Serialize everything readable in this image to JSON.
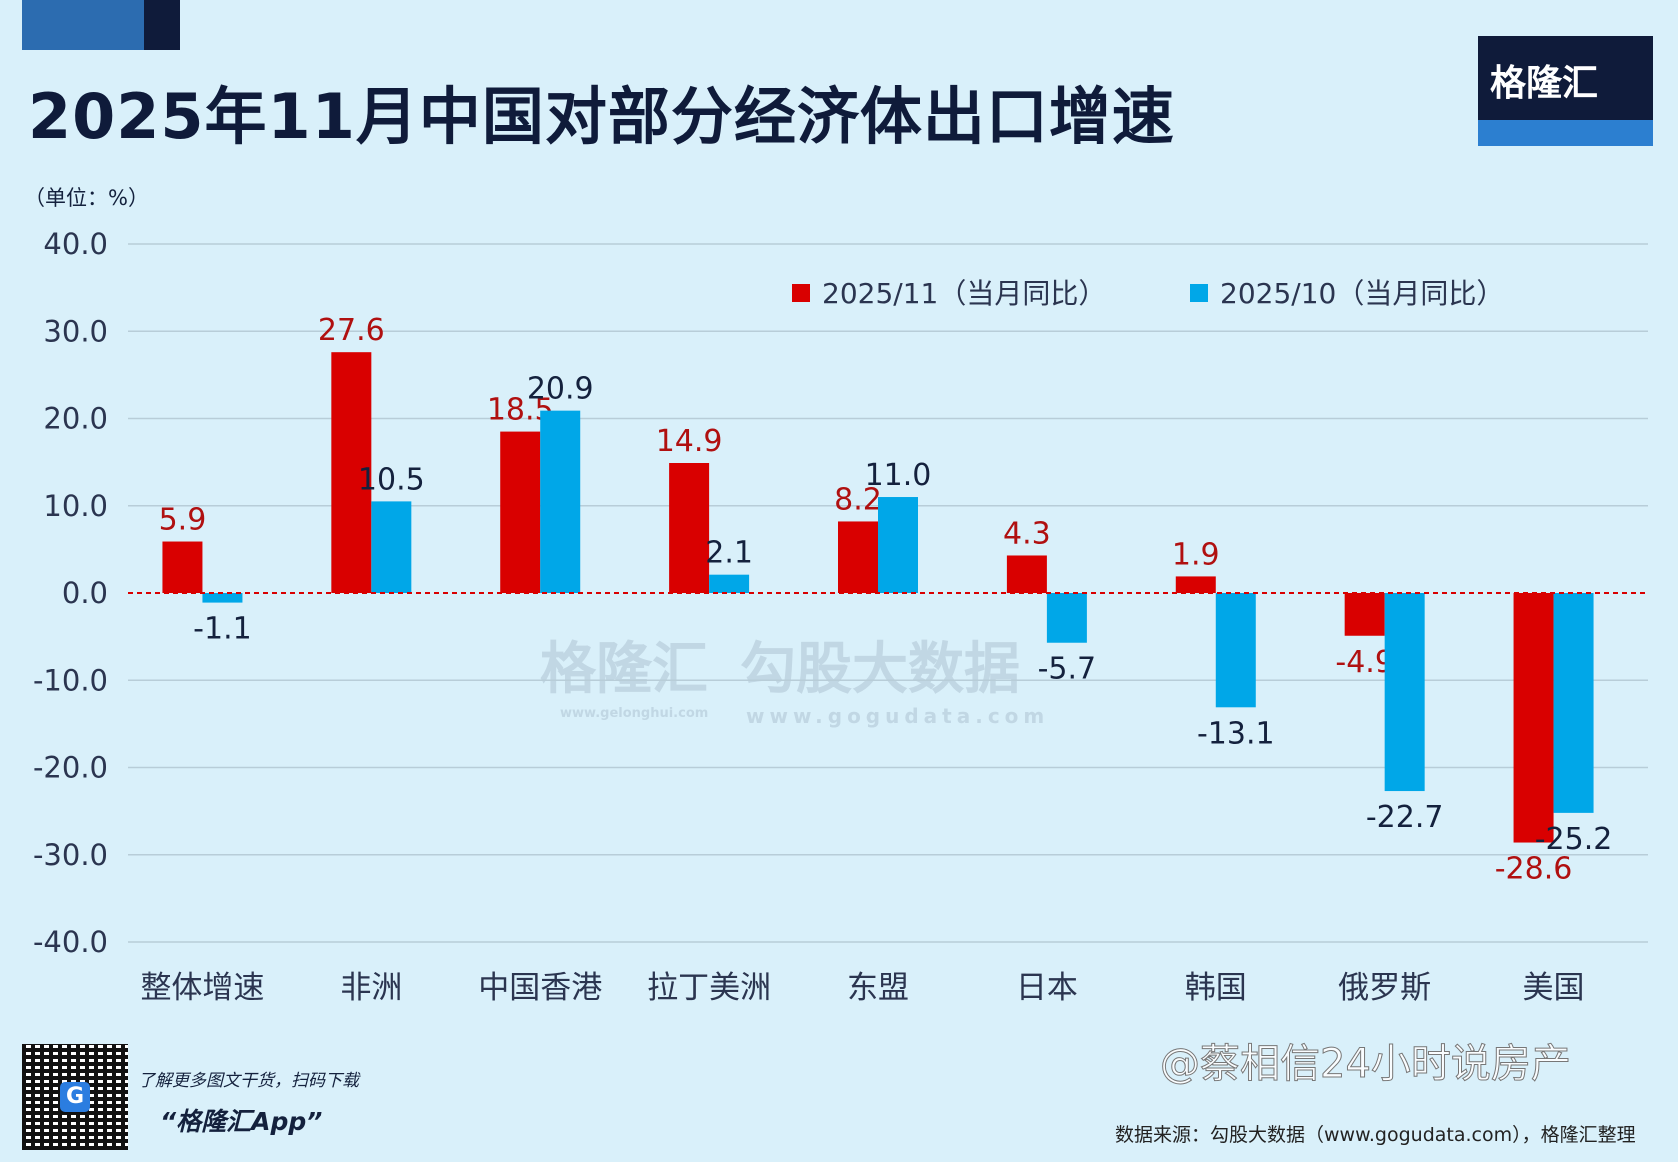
{
  "header": {
    "title": "2025年11月中国对部分经济体出口增速",
    "logo": "格隆汇"
  },
  "chart_data": {
    "type": "bar",
    "title": "2025年11月中国对部分经济体出口增速",
    "ylabel": "（单位：%）",
    "ylim": [
      -40,
      40
    ],
    "yticks": [
      "40.0",
      "30.0",
      "20.0",
      "10.0",
      "0.0",
      "-10.0",
      "-20.0",
      "-30.0",
      "-40.0"
    ],
    "grid": true,
    "legend_position": "top-right",
    "categories": [
      "整体增速",
      "非洲",
      "中国香港",
      "拉丁美洲",
      "东盟",
      "日本",
      "韩国",
      "俄罗斯",
      "美国"
    ],
    "series": [
      {
        "name": "2025/11（当月同比）",
        "color": "#d90000",
        "label_color": "#b01010",
        "values": [
          5.9,
          27.6,
          18.5,
          14.9,
          8.2,
          4.3,
          1.9,
          -4.9,
          -28.6
        ]
      },
      {
        "name": "2025/10（当月同比）",
        "color": "#00a7e8",
        "label_color": "#14213d",
        "values": [
          -1.1,
          10.5,
          20.9,
          2.1,
          11.0,
          -5.7,
          -13.1,
          -22.7,
          -25.2
        ]
      }
    ]
  },
  "watermarks": {
    "brand": "格隆汇",
    "brand_url": "www.gelonghui.com",
    "data": "勾股大数据",
    "data_url": "www.gogudata.com"
  },
  "footer": {
    "promo_line": "了解更多图文干货，扫码下载",
    "app_name": "“格隆汇App”",
    "source": "数据来源：勾股大数据（www.gogudata.com），格隆汇整理",
    "weibo": "@蔡相信24小时说房产"
  }
}
